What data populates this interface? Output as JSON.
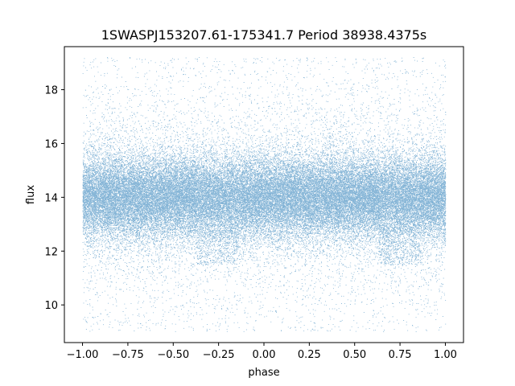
{
  "chart_data": {
    "type": "scatter",
    "title": "1SWASPJ153207.61-175341.7 Period 38938.4375s",
    "xlabel": "phase",
    "ylabel": "flux",
    "xlim": [
      -1.1,
      1.1
    ],
    "ylim": [
      8.6,
      19.6
    ],
    "xticks": [
      -1.0,
      -0.75,
      -0.5,
      -0.25,
      0.0,
      0.25,
      0.5,
      0.75,
      1.0
    ],
    "xtick_labels": [
      "−1.00",
      "−0.75",
      "−0.50",
      "−0.25",
      "0.00",
      "0.25",
      "0.50",
      "0.75",
      "1.00"
    ],
    "yticks": [
      10,
      12,
      14,
      16,
      18
    ],
    "ytick_labels": [
      "10",
      "12",
      "14",
      "16",
      "18"
    ],
    "grid": false,
    "legend": "none",
    "point_color": "#1f77b4",
    "series": [
      {
        "phase_range": [
          -1.0,
          1.0
        ],
        "flux_center": 14.0,
        "flux_core_range": [
          12.7,
          15.3
        ],
        "flux_full_range": [
          9.0,
          19.2
        ],
        "dip_phases": [
          -0.25,
          0.75
        ],
        "dip_flux_min": 11.5,
        "n_points": 60000
      }
    ]
  }
}
